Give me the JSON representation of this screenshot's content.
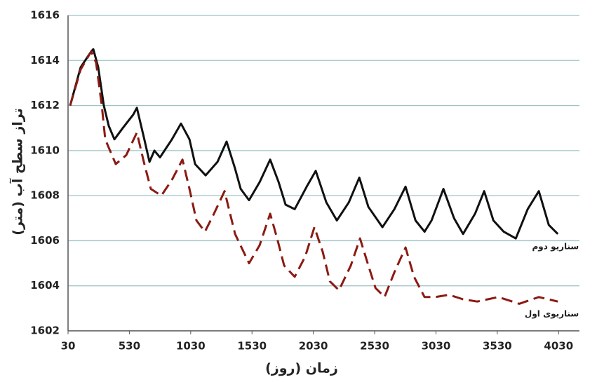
{
  "chart_data": {
    "type": "line",
    "x_label": "زمان (روز)",
    "y_label": "تراز سطح آب (متر)",
    "xlim": [
      30,
      4200
    ],
    "ylim": [
      1602,
      1616
    ],
    "xticks": [
      30,
      530,
      1030,
      1530,
      2030,
      2530,
      3030,
      3530,
      4030
    ],
    "yticks": [
      1602,
      1604,
      1606,
      1608,
      1610,
      1612,
      1614,
      1616
    ],
    "grid": true,
    "series": [
      {
        "name": "سناریو دوم",
        "color": "#111111",
        "dash": false,
        "x": [
          47,
          133,
          219,
          236,
          276,
          322,
          362,
          408,
          476,
          562,
          591,
          648,
          694,
          734,
          780,
          877,
          951,
          1020,
          1066,
          1152,
          1249,
          1323,
          1392,
          1438,
          1506,
          1592,
          1678,
          1747,
          1804,
          1878,
          1976,
          2050,
          2136,
          2222,
          2319,
          2405,
          2479,
          2594,
          2691,
          2782,
          2863,
          2937,
          2994,
          3091,
          3177,
          3251,
          3349,
          3423,
          3498,
          3583,
          3681,
          3778,
          3869,
          3950,
          4024
        ],
        "values": [
          1612.0,
          1613.7,
          1614.4,
          1614.5,
          1613.7,
          1612.0,
          1611.1,
          1610.5,
          1611.0,
          1611.6,
          1611.9,
          1610.6,
          1609.5,
          1610.0,
          1609.7,
          1610.5,
          1611.2,
          1610.5,
          1609.4,
          1608.9,
          1609.5,
          1610.4,
          1609.2,
          1608.3,
          1607.8,
          1608.6,
          1609.6,
          1608.6,
          1607.6,
          1607.4,
          1608.4,
          1609.1,
          1607.7,
          1606.9,
          1607.7,
          1608.8,
          1607.5,
          1606.6,
          1607.4,
          1608.4,
          1606.9,
          1606.4,
          1606.9,
          1608.3,
          1607.0,
          1606.3,
          1607.2,
          1608.2,
          1606.9,
          1606.4,
          1606.1,
          1607.4,
          1608.2,
          1606.7,
          1606.3
        ]
      },
      {
        "name": "سناریوی اول",
        "color": "#8b1a12",
        "dash": true,
        "x": [
          47,
          133,
          219,
          259,
          305,
          333,
          419,
          505,
          591,
          648,
          705,
          791,
          877,
          963,
          1020,
          1077,
          1146,
          1220,
          1306,
          1392,
          1506,
          1592,
          1678,
          1735,
          1792,
          1878,
          1964,
          2039,
          2107,
          2165,
          2239,
          2336,
          2411,
          2479,
          2537,
          2611,
          2691,
          2782,
          2851,
          2937,
          3023,
          3137,
          3251,
          3366,
          3538,
          3709,
          3869,
          4024
        ],
        "values": [
          1612.0,
          1613.6,
          1614.4,
          1613.9,
          1612.0,
          1610.5,
          1609.4,
          1609.8,
          1610.8,
          1609.5,
          1608.3,
          1608.0,
          1608.7,
          1609.6,
          1608.3,
          1606.9,
          1606.4,
          1607.2,
          1608.2,
          1606.3,
          1605.0,
          1605.8,
          1607.2,
          1606.1,
          1604.9,
          1604.4,
          1605.3,
          1606.6,
          1605.5,
          1604.2,
          1603.8,
          1604.9,
          1606.1,
          1604.9,
          1603.9,
          1603.5,
          1604.6,
          1605.7,
          1604.4,
          1603.5,
          1603.5,
          1603.6,
          1603.4,
          1603.3,
          1603.5,
          1603.2,
          1603.5,
          1603.3
        ]
      }
    ]
  }
}
